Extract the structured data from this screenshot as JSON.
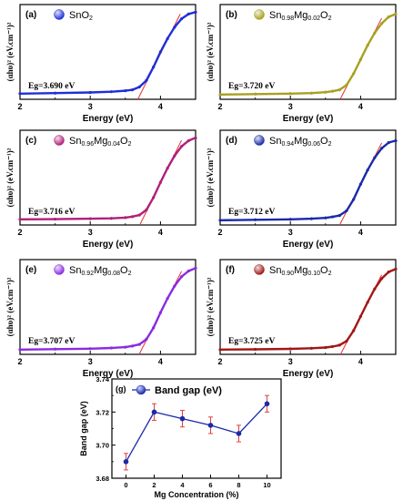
{
  "chart_data": [
    {
      "type": "line",
      "panel": "(a)",
      "legend": "SnO2",
      "legend_parts": [
        "SnO",
        "2",
        "",
        "",
        "",
        ""
      ],
      "color": "#1f2fd6",
      "xlabel": "Energy (eV)",
      "ylabel": "(αhυ)² (eV.cm⁻¹)²",
      "xlim": [
        2,
        4.5
      ],
      "ylim": [
        0,
        1
      ],
      "xticks": [
        "2",
        "3",
        "4"
      ],
      "eg_label": "Eg=3.690 eV",
      "eg": 3.69,
      "x": [
        2.0,
        2.5,
        3.0,
        3.3,
        3.5,
        3.6,
        3.7,
        3.8,
        3.9,
        4.0,
        4.1,
        4.2,
        4.3,
        4.4,
        4.5
      ],
      "y": [
        0.06,
        0.065,
        0.072,
        0.08,
        0.09,
        0.1,
        0.13,
        0.2,
        0.34,
        0.5,
        0.64,
        0.76,
        0.85,
        0.9,
        0.92
      ]
    },
    {
      "type": "line",
      "panel": "(b)",
      "legend": "Sn0.98Mg0.02O2",
      "legend_parts": [
        "Sn",
        "0.98",
        "Mg",
        "0.02",
        "O",
        "2"
      ],
      "color": "#a8a020",
      "xlabel": "Energy (eV)",
      "ylabel": "(αhυ)² (eV.cm⁻¹)²",
      "xlim": [
        2,
        4.5
      ],
      "ylim": [
        0,
        1
      ],
      "xticks": [
        "2",
        "3",
        "4"
      ],
      "eg_label": "Eg=3.720 eV",
      "eg": 3.72,
      "x": [
        2.0,
        2.5,
        3.0,
        3.3,
        3.5,
        3.6,
        3.7,
        3.8,
        3.9,
        4.0,
        4.1,
        4.2,
        4.3,
        4.4,
        4.5
      ],
      "y": [
        0.05,
        0.055,
        0.06,
        0.065,
        0.075,
        0.085,
        0.1,
        0.15,
        0.27,
        0.42,
        0.57,
        0.7,
        0.8,
        0.87,
        0.9
      ]
    },
    {
      "type": "line",
      "panel": "(c)",
      "legend": "Sn0.96Mg0.04O2",
      "legend_parts": [
        "Sn",
        "0.96",
        "Mg",
        "0.04",
        "O",
        "2"
      ],
      "color": "#b0207a",
      "xlabel": "Energy (eV)",
      "ylabel": "(αhυ)² (eV.cm⁻¹)²",
      "xlim": [
        2,
        4.5
      ],
      "ylim": [
        0,
        1
      ],
      "xticks": [
        "2",
        "3",
        "4"
      ],
      "eg_label": "Eg=3.716 eV",
      "eg": 3.716,
      "x": [
        2.0,
        2.5,
        3.0,
        3.3,
        3.5,
        3.6,
        3.7,
        3.8,
        3.9,
        4.0,
        4.1,
        4.2,
        4.3,
        4.4,
        4.5
      ],
      "y": [
        0.06,
        0.062,
        0.066,
        0.07,
        0.078,
        0.088,
        0.105,
        0.16,
        0.29,
        0.45,
        0.6,
        0.73,
        0.83,
        0.89,
        0.92
      ]
    },
    {
      "type": "line",
      "panel": "(d)",
      "legend": "Sn0.94Mg0.06O2",
      "legend_parts": [
        "Sn",
        "0.94",
        "Mg",
        "0.06",
        "O",
        "2"
      ],
      "color": "#1a2aa8",
      "xlabel": "Energy (eV)",
      "ylabel": "(αhυ)² (eV.cm⁻¹)²",
      "xlim": [
        2,
        4.5
      ],
      "ylim": [
        0,
        1
      ],
      "xticks": [
        "2",
        "3",
        "4"
      ],
      "eg_label": "Eg=3.712 eV",
      "eg": 3.712,
      "x": [
        2.0,
        2.5,
        3.0,
        3.3,
        3.5,
        3.6,
        3.7,
        3.8,
        3.9,
        4.0,
        4.1,
        4.2,
        4.3,
        4.4,
        4.5
      ],
      "y": [
        0.05,
        0.055,
        0.06,
        0.066,
        0.075,
        0.086,
        0.1,
        0.15,
        0.27,
        0.43,
        0.58,
        0.71,
        0.81,
        0.87,
        0.89
      ]
    },
    {
      "type": "line",
      "panel": "(e)",
      "legend": "Sn0.92Mg0.08O2",
      "legend_parts": [
        "Sn",
        "0.92",
        "Mg",
        "0.08",
        "O",
        "2"
      ],
      "color": "#8a2be2",
      "xlabel": "Energy (eV)",
      "ylabel": "(αhυ)² (eV.cm⁻¹)²",
      "xlim": [
        2,
        4.5
      ],
      "ylim": [
        0,
        1
      ],
      "xticks": [
        "2",
        "3",
        "4"
      ],
      "eg_label": "Eg=3.707 eV",
      "eg": 3.707,
      "x": [
        2.0,
        2.5,
        3.0,
        3.3,
        3.5,
        3.6,
        3.7,
        3.8,
        3.9,
        4.0,
        4.1,
        4.2,
        4.3,
        4.4,
        4.5
      ],
      "y": [
        0.05,
        0.055,
        0.06,
        0.067,
        0.076,
        0.088,
        0.105,
        0.16,
        0.28,
        0.44,
        0.59,
        0.72,
        0.82,
        0.88,
        0.91
      ]
    },
    {
      "type": "line",
      "panel": "(f)",
      "legend": "Sn0.90Mg0.10O2",
      "legend_parts": [
        "Sn",
        "0.90",
        "Mg",
        "0.10",
        "O",
        "2"
      ],
      "color": "#a01818",
      "xlabel": "Energy (eV)",
      "ylabel": "(αhυ)² (eV.cm⁻¹)²",
      "xlim": [
        2,
        4.5
      ],
      "ylim": [
        0,
        1
      ],
      "xticks": [
        "2",
        "3",
        "4"
      ],
      "eg_label": "Eg=3.725 eV",
      "eg": 3.725,
      "x": [
        2.0,
        2.5,
        3.0,
        3.3,
        3.5,
        3.6,
        3.7,
        3.8,
        3.9,
        4.0,
        4.1,
        4.2,
        4.3,
        4.4,
        4.5
      ],
      "y": [
        0.05,
        0.053,
        0.058,
        0.064,
        0.072,
        0.082,
        0.097,
        0.14,
        0.25,
        0.4,
        0.55,
        0.69,
        0.8,
        0.87,
        0.9
      ]
    },
    {
      "type": "line",
      "panel": "(g)",
      "legend": "Band gap (eV)",
      "color": "#1a2aa8",
      "error_color": "#e04040",
      "xlabel": "Mg Concentration (%)",
      "ylabel": "Band gap (eV)",
      "xlim": [
        -1,
        11
      ],
      "ylim": [
        3.68,
        3.74
      ],
      "xticks": [
        "0",
        "2",
        "4",
        "6",
        "8",
        "10"
      ],
      "yticks": [
        "3.68",
        "3.70",
        "3.72",
        "3.74"
      ],
      "x": [
        0,
        2,
        4,
        6,
        8,
        10
      ],
      "y": [
        3.69,
        3.72,
        3.716,
        3.712,
        3.707,
        3.725
      ],
      "error": [
        0.005,
        0.005,
        0.005,
        0.005,
        0.005,
        0.005
      ]
    }
  ]
}
